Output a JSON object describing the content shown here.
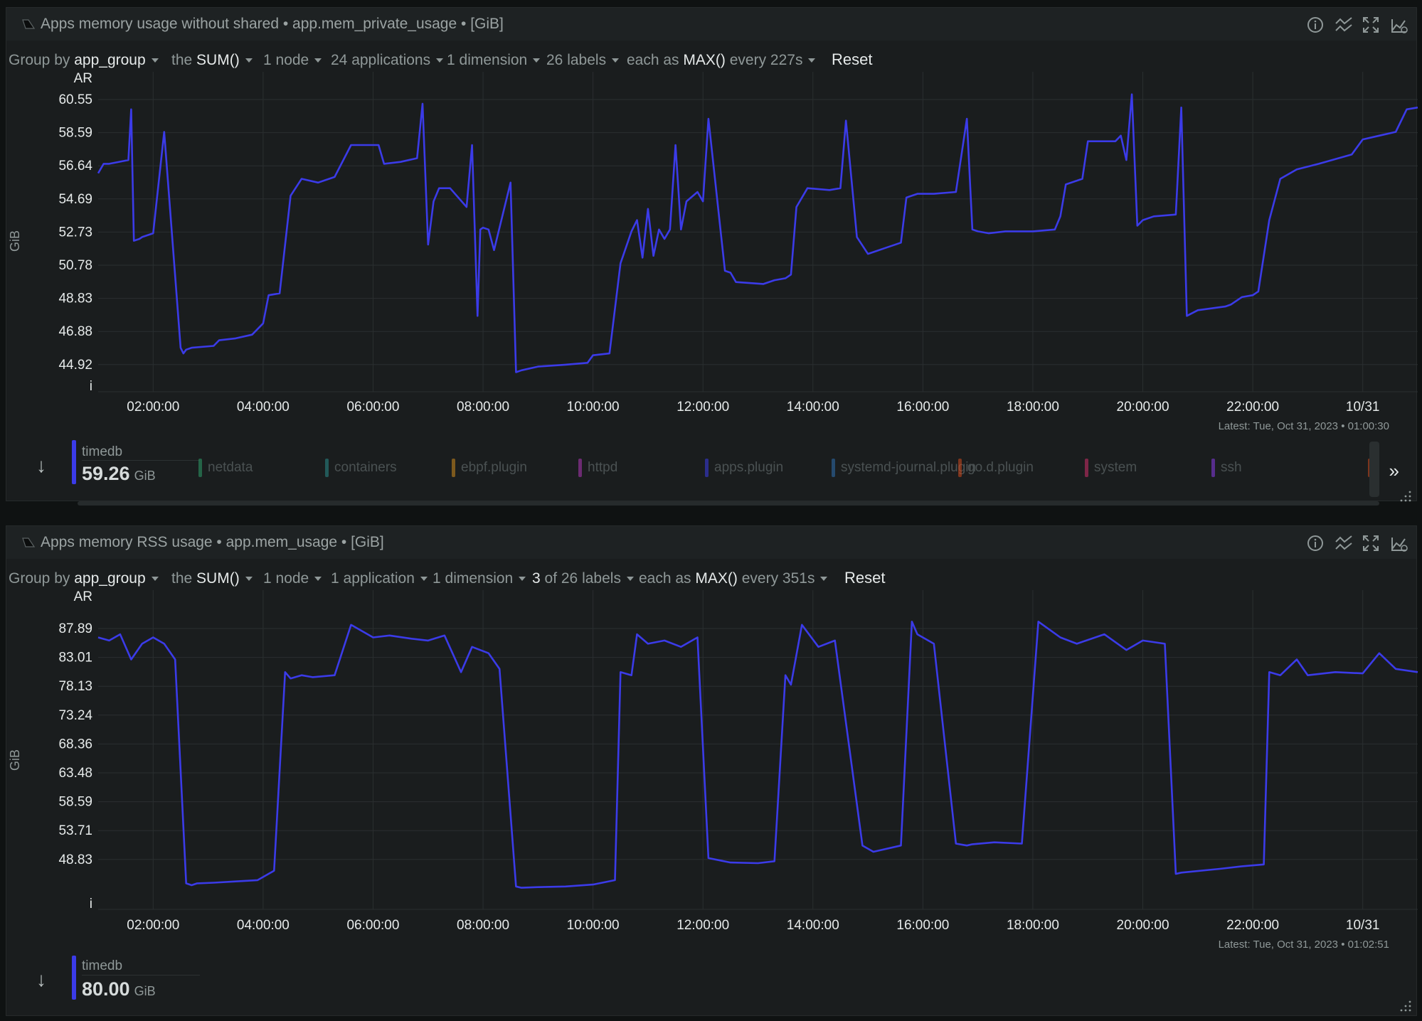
{
  "colors": {
    "series": "#3b3be8",
    "background": "#1a1d1e",
    "grid": "#2a2f30"
  },
  "panels": [
    {
      "title": "Apps memory usage without shared • app.mem_private_usage • [GiB]",
      "filters": {
        "group_by_label": "Group by",
        "group_by": "app_group",
        "the_label": "the",
        "aggregation": "SUM()",
        "nodes": "1 node",
        "applications": "24 applications",
        "dimensions": "1 dimension",
        "labels_num": "26",
        "labels_text": "labels",
        "each_as_label": "each as",
        "each_as": "MAX()",
        "every": "every 227s",
        "reset": "Reset"
      },
      "latest": "Latest:  Tue, Oct 31, 2023 • 01:00:30",
      "selected": {
        "name": "timedb",
        "value": "59.26",
        "unit": "GiB"
      },
      "legend_items": [
        {
          "name": "netdata",
          "color": "#2e9e6a"
        },
        {
          "name": "containers",
          "color": "#2a8a8a"
        },
        {
          "name": "ebpf.plugin",
          "color": "#d08a1e"
        },
        {
          "name": "httpd",
          "color": "#b036b8"
        },
        {
          "name": "apps.plugin",
          "color": "#3b3be8"
        },
        {
          "name": "systemd-journal.plugin",
          "color": "#2f6fb0"
        },
        {
          "name": "go.d.plugin",
          "color": "#d0491e"
        },
        {
          "name": "system",
          "color": "#d02e6a"
        },
        {
          "name": "ssh",
          "color": "#8a3be8"
        }
      ],
      "more_label": "»",
      "chart_data": {
        "type": "line",
        "ylabel": "GiB",
        "corner_label": "AR",
        "bottom_label": "i",
        "y_ticks": [
          "60.55",
          "58.59",
          "56.64",
          "54.69",
          "52.73",
          "50.78",
          "48.83",
          "46.88",
          "44.92"
        ],
        "x_ticks": [
          "02:00:00",
          "04:00:00",
          "06:00:00",
          "08:00:00",
          "10:00:00",
          "12:00:00",
          "14:00:00",
          "16:00:00",
          "18:00:00",
          "20:00:00",
          "22:00:00",
          "10/31"
        ],
        "x_range_hours": [
          1.0,
          25.0
        ],
        "ylim": [
          43.4,
          61.2
        ],
        "series": [
          {
            "name": "timedb",
            "x": [
              1.0,
              1.1,
              1.2,
              1.55,
              1.6,
              1.65,
              1.75,
              1.8,
              2.0,
              2.2,
              2.5,
              2.55,
              2.6,
              2.7,
              3.1,
              3.2,
              3.5,
              3.8,
              4.0,
              4.1,
              4.3,
              4.5,
              4.7,
              5.0,
              5.3,
              5.6,
              5.7,
              6.1,
              6.2,
              6.5,
              6.8,
              6.9,
              7.0,
              7.1,
              7.2,
              7.4,
              7.7,
              7.8,
              7.9,
              7.95,
              8.0,
              8.1,
              8.2,
              8.5,
              8.6,
              8.7,
              9.0,
              9.5,
              9.9,
              10.0,
              10.3,
              10.5,
              10.7,
              10.8,
              10.9,
              11.0,
              11.1,
              11.2,
              11.3,
              11.4,
              11.5,
              11.6,
              11.7,
              11.9,
              12.0,
              12.1,
              12.4,
              12.5,
              12.6,
              13.1,
              13.3,
              13.5,
              13.6,
              13.7,
              13.9,
              14.3,
              14.5,
              14.6,
              14.8,
              15.0,
              15.1,
              15.3,
              15.6,
              15.7,
              15.9,
              16.2,
              16.6,
              16.8,
              16.9,
              17.0,
              17.2,
              17.5,
              18.0,
              18.4,
              18.5,
              18.6,
              18.9,
              19.0,
              19.2,
              19.5,
              19.6,
              19.7,
              19.8,
              19.9,
              20.0,
              20.2,
              20.6,
              20.7,
              20.8,
              21.0,
              21.5,
              21.6,
              21.8,
              22.0,
              22.1,
              22.3,
              22.5,
              22.8,
              23.2,
              23.8,
              24.0,
              24.3,
              24.6,
              24.8,
              25.0
            ],
            "values": [
              55.8,
              56.3,
              56.3,
              56.5,
              59.2,
              52.2,
              52.3,
              52.4,
              52.6,
              58.0,
              46.5,
              46.2,
              46.4,
              46.5,
              46.6,
              46.9,
              47.0,
              47.2,
              47.8,
              49.3,
              49.4,
              54.6,
              55.5,
              55.3,
              55.6,
              57.3,
              57.3,
              57.3,
              56.3,
              56.4,
              56.6,
              59.5,
              52.0,
              54.3,
              55.0,
              55.0,
              54.0,
              57.3,
              48.2,
              52.8,
              52.9,
              52.8,
              51.7,
              55.3,
              45.2,
              45.3,
              45.5,
              45.6,
              45.7,
              46.1,
              46.2,
              51.0,
              52.7,
              53.3,
              51.3,
              53.9,
              51.4,
              52.8,
              52.3,
              52.8,
              57.3,
              52.8,
              54.3,
              54.8,
              54.3,
              58.7,
              50.6,
              50.5,
              50.0,
              49.9,
              50.1,
              50.2,
              50.4,
              54.0,
              55.0,
              54.9,
              55.0,
              58.6,
              52.4,
              51.5,
              51.6,
              51.8,
              52.1,
              54.5,
              54.7,
              54.7,
              54.8,
              58.7,
              52.8,
              52.7,
              52.6,
              52.7,
              52.7,
              52.8,
              53.5,
              55.2,
              55.5,
              57.5,
              57.5,
              57.5,
              57.8,
              56.5,
              60.0,
              53.0,
              53.3,
              53.5,
              53.6,
              59.3,
              48.2,
              48.5,
              48.7,
              48.8,
              49.2,
              49.3,
              49.5,
              53.3,
              55.5,
              56.0,
              56.3,
              56.8,
              57.6,
              57.8,
              58.0,
              59.2,
              59.3
            ]
          }
        ]
      }
    },
    {
      "title": "Apps memory RSS usage • app.mem_usage • [GiB]",
      "filters": {
        "group_by_label": "Group by",
        "group_by": "app_group",
        "the_label": "the",
        "aggregation": "SUM()",
        "nodes": "1 node",
        "applications": "1 application",
        "dimensions": "1 dimension",
        "labels_num": "3",
        "labels_text": "of 26 labels",
        "each_as_label": "each as",
        "each_as": "MAX()",
        "every": "every 351s",
        "reset": "Reset"
      },
      "latest": "Latest:  Tue, Oct 31, 2023 • 01:02:51",
      "selected": {
        "name": "timedb",
        "value": "80.00",
        "unit": "GiB"
      },
      "chart_data": {
        "type": "line",
        "ylabel": "GiB",
        "corner_label": "AR",
        "bottom_label": "i",
        "y_ticks": [
          "87.89",
          "83.01",
          "78.13",
          "73.24",
          "68.36",
          "63.48",
          "58.59",
          "53.71",
          "48.83"
        ],
        "x_ticks": [
          "02:00:00",
          "04:00:00",
          "06:00:00",
          "08:00:00",
          "10:00:00",
          "12:00:00",
          "14:00:00",
          "16:00:00",
          "18:00:00",
          "20:00:00",
          "22:00:00",
          "10/31"
        ],
        "x_range_hours": [
          1.0,
          25.0
        ],
        "ylim": [
          40.0,
          93.0
        ],
        "series": [
          {
            "name": "timedb",
            "x": [
              1.0,
              1.2,
              1.4,
              1.6,
              1.8,
              2.0,
              2.2,
              2.4,
              2.6,
              2.7,
              2.8,
              3.1,
              3.5,
              3.9,
              4.2,
              4.4,
              4.5,
              4.7,
              4.9,
              5.3,
              5.6,
              5.8,
              6.0,
              6.3,
              6.7,
              7.0,
              7.3,
              7.6,
              7.8,
              8.1,
              8.3,
              8.6,
              8.7,
              9.0,
              9.5,
              10.0,
              10.4,
              10.5,
              10.7,
              10.8,
              11.0,
              11.3,
              11.6,
              11.9,
              12.1,
              12.5,
              13.0,
              13.3,
              13.5,
              13.6,
              13.8,
              14.1,
              14.4,
              14.9,
              15.0,
              15.1,
              15.6,
              15.8,
              15.9,
              16.2,
              16.6,
              16.8,
              16.9,
              17.3,
              17.8,
              18.1,
              18.5,
              18.8,
              19.3,
              19.7,
              20.0,
              20.4,
              20.6,
              20.7,
              21.4,
              21.8,
              22.2,
              22.3,
              22.5,
              22.8,
              23.0,
              23.5,
              24.0,
              24.3,
              24.6,
              25.0
            ],
            "values": [
              85.5,
              85.0,
              86.0,
              82.0,
              84.5,
              85.5,
              84.5,
              82.0,
              46.5,
              46.2,
              46.5,
              46.6,
              46.8,
              47.0,
              48.5,
              80.0,
              79.0,
              79.5,
              79.2,
              79.5,
              87.5,
              86.5,
              85.5,
              85.8,
              85.3,
              85.0,
              85.8,
              80.0,
              84.0,
              83.0,
              80.5,
              46.0,
              45.8,
              45.9,
              46.0,
              46.3,
              47.0,
              80.0,
              79.5,
              86.0,
              84.5,
              85.0,
              84.0,
              85.5,
              50.5,
              49.8,
              49.7,
              50.0,
              79.5,
              78.0,
              87.5,
              84.0,
              85.0,
              52.5,
              52.0,
              51.5,
              52.5,
              88.0,
              86.0,
              84.5,
              52.8,
              52.5,
              52.7,
              53.0,
              52.8,
              88.0,
              85.5,
              84.5,
              86.0,
              83.5,
              85.0,
              84.5,
              48.0,
              48.2,
              48.8,
              49.2,
              49.5,
              80.0,
              79.5,
              82.0,
              79.5,
              80.0,
              79.8,
              83.0,
              80.5,
              80.0
            ]
          }
        ]
      }
    }
  ]
}
